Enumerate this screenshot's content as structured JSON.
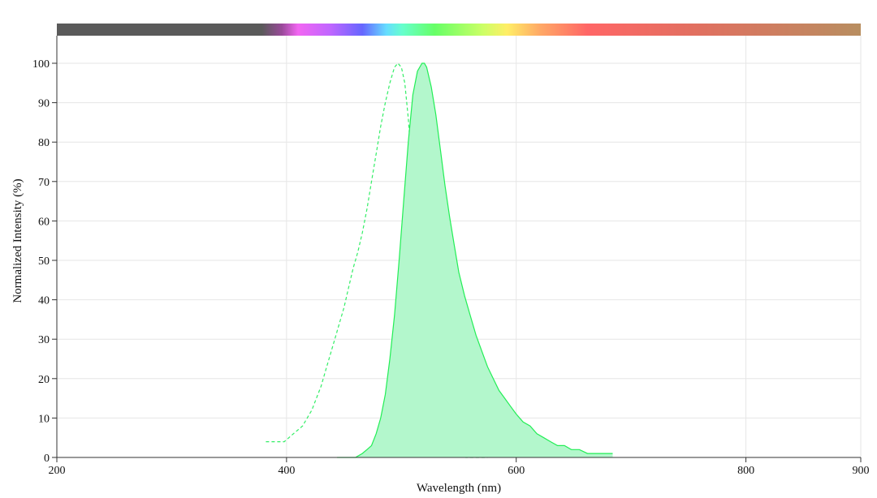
{
  "chart_data": {
    "type": "area",
    "title": "",
    "xlabel": "Wavelength (nm)",
    "ylabel": "Normalized Intensity (%)",
    "xlim": [
      200,
      900
    ],
    "ylim": [
      0,
      100
    ],
    "x_ticks": [
      200,
      400,
      600,
      800,
      900
    ],
    "y_ticks": [
      0,
      10,
      20,
      30,
      40,
      50,
      60,
      70,
      80,
      90,
      100
    ],
    "grid": true,
    "legend": "none",
    "spectrum_bar": true,
    "series": [
      {
        "style": "dashed",
        "color": "#33ee66",
        "x": [
          382,
          388,
          393,
          398,
          402,
          406,
          410,
          414,
          418,
          422,
          426,
          430,
          434,
          438,
          442,
          446,
          450,
          454,
          458,
          462,
          466,
          470,
          474,
          478,
          482,
          486,
          490,
          494,
          497,
          500,
          503,
          506,
          509,
          512,
          515,
          518,
          521,
          524,
          527,
          530,
          533,
          536,
          540,
          545,
          550,
          556,
          562,
          568,
          575
        ],
        "y": [
          4,
          4,
          4,
          4,
          5,
          6,
          7,
          8,
          10,
          12,
          15,
          18,
          22,
          26,
          30,
          34,
          38,
          43,
          48,
          52,
          57,
          63,
          70,
          77,
          84,
          90,
          95,
          99,
          100,
          99,
          95,
          86,
          74,
          62,
          48,
          35,
          23,
          14,
          8,
          5,
          3,
          2,
          1,
          0.5,
          0.3,
          0,
          0,
          0,
          0
        ]
      },
      {
        "style": "filled",
        "color": "#22ee55",
        "fill": "#b3f7cc",
        "x": [
          444,
          452,
          460,
          466,
          470,
          474,
          478,
          482,
          486,
          490,
          494,
          498,
          502,
          506,
          510,
          514,
          518,
          520,
          522,
          526,
          530,
          534,
          538,
          542,
          546,
          550,
          555,
          560,
          565,
          570,
          575,
          580,
          585,
          590,
          595,
          600,
          606,
          612,
          618,
          624,
          630,
          636,
          642,
          648,
          655,
          662,
          670,
          678,
          684
        ],
        "y": [
          0,
          0,
          0,
          1,
          2,
          3,
          6,
          10,
          16,
          25,
          36,
          50,
          65,
          80,
          92,
          98,
          100,
          100,
          99,
          94,
          87,
          78,
          69,
          61,
          54,
          47,
          41,
          36,
          31,
          27,
          23,
          20,
          17,
          15,
          13,
          11,
          9,
          8,
          6,
          5,
          4,
          3,
          3,
          2,
          2,
          1,
          1,
          1,
          1
        ]
      }
    ]
  }
}
